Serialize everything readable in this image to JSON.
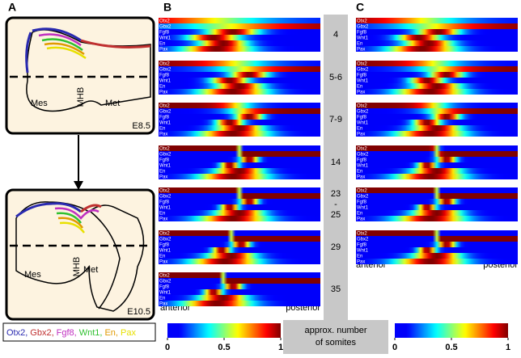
{
  "panel_letters": [
    "A",
    "B",
    "C"
  ],
  "panel_a": {
    "top": {
      "regions": [
        "Mes",
        "MHB",
        "Met"
      ],
      "stage": "E8.5"
    },
    "bottom": {
      "regions": [
        "Mes",
        "MHB",
        "Met"
      ],
      "stage": "E10.5"
    }
  },
  "gene_legend": [
    {
      "name": "Otx2,",
      "color": "#2a2ab0"
    },
    {
      "name": "Gbx2,",
      "color": "#c03030"
    },
    {
      "name": "Fgf8,",
      "color": "#c030c0"
    },
    {
      "name": "Wnt1,",
      "color": "#30c030"
    },
    {
      "name": "En,",
      "color": "#e09a00"
    },
    {
      "name": "Pax",
      "color": "#e8e000"
    }
  ],
  "heatmap_rows": [
    "Otx2",
    "Gbx2",
    "Fgf8",
    "Wnt1",
    "En",
    "Pax"
  ],
  "somites": [
    [
      "4"
    ],
    [
      "5-6"
    ],
    [
      "7-9"
    ],
    [
      "14"
    ],
    [
      "23",
      "-",
      "25"
    ],
    [
      "29"
    ],
    [
      "35"
    ]
  ],
  "axis_labels": {
    "anterior": "anterior",
    "posterior": "posterior"
  },
  "somite_caption": [
    "approx. number",
    "of somites"
  ],
  "colorbar_ticks": [
    0,
    0.5,
    1
  ]
}
